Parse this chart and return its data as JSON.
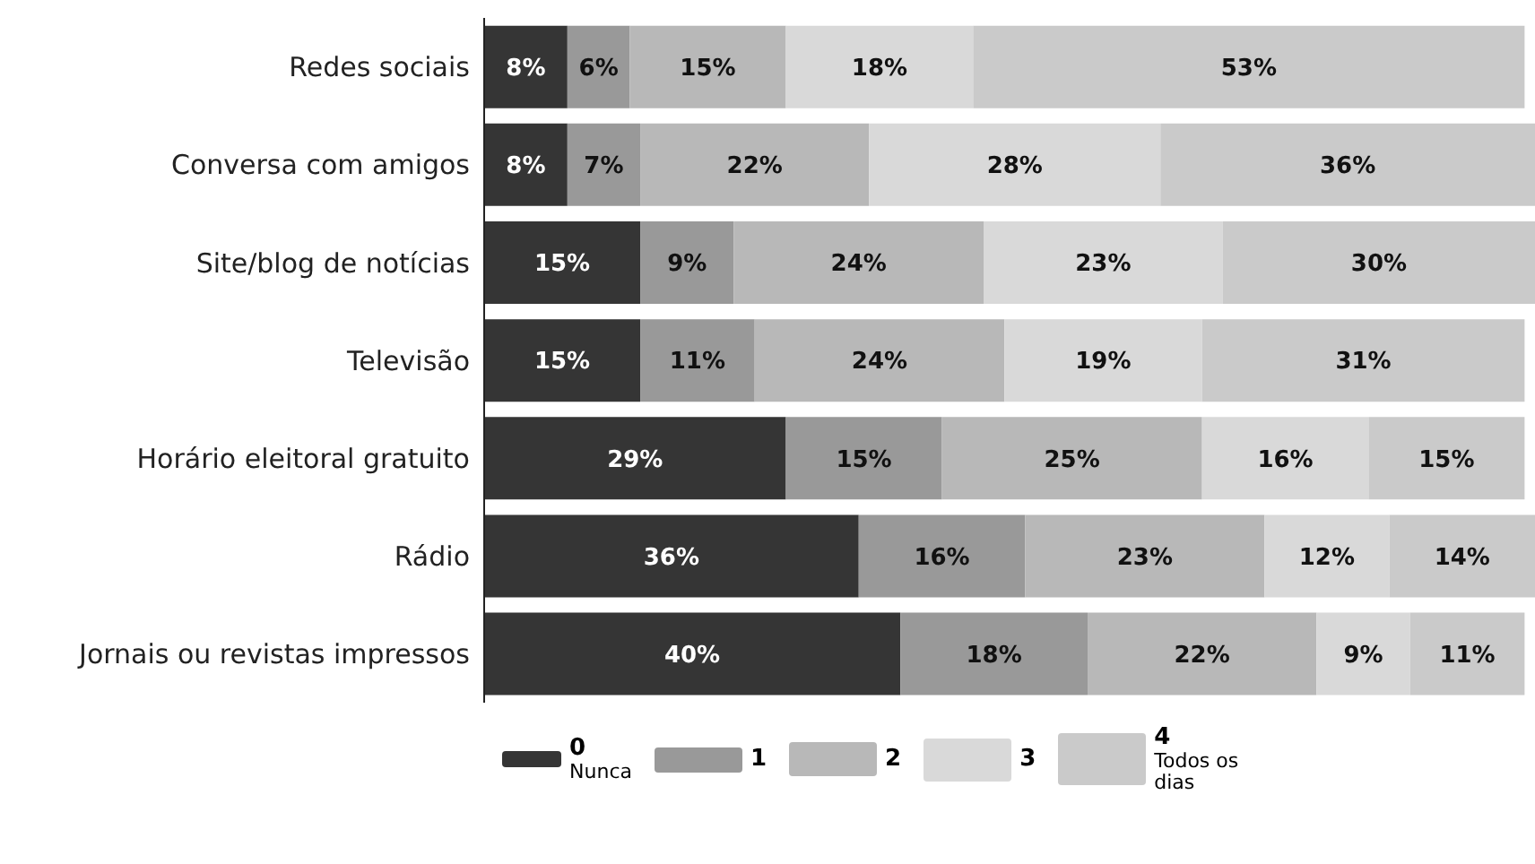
{
  "chart_data": {
    "type": "bar",
    "orientation": "horizontal",
    "stacked": true,
    "legend": "bottom",
    "categories": [
      "Redes sociais",
      "Conversa com amigos",
      "Site/blog de notícias",
      "Televisão",
      "Horário eleitoral gratuito",
      "Rádio",
      "Jornais ou revistas impressos"
    ],
    "series": [
      {
        "name": "0 Nunca",
        "color": "#353535",
        "values": [
          8,
          8,
          15,
          15,
          29,
          36,
          40
        ],
        "value_labels": [
          "8%",
          "8%",
          "15%",
          "15%",
          "29%",
          "36%",
          "40%"
        ]
      },
      {
        "name": "1",
        "color": "#999999",
        "values": [
          6,
          7,
          9,
          11,
          15,
          16,
          18
        ],
        "value_labels": [
          "6%",
          "7%",
          "9%",
          "11%",
          "15%",
          "16%",
          "18%"
        ]
      },
      {
        "name": "2",
        "color": "#b8b8b8",
        "values": [
          15,
          22,
          24,
          24,
          25,
          23,
          22
        ],
        "value_labels": [
          "15%",
          "22%",
          "24%",
          "24%",
          "25%",
          "23%",
          "22%"
        ]
      },
      {
        "name": "3",
        "color": "#d9d9d9",
        "values": [
          18,
          28,
          23,
          19,
          16,
          12,
          9
        ],
        "value_labels": [
          "18%",
          "28%",
          "23%",
          "19%",
          "16%",
          "12%",
          "9%"
        ]
      },
      {
        "name": "4 Todos os dias",
        "color": "#cacaca",
        "values": [
          53,
          36,
          30,
          31,
          15,
          14,
          11
        ],
        "value_labels": [
          "53%",
          "36%",
          "30%",
          "31%",
          "15%",
          "14%",
          "11%"
        ]
      }
    ]
  }
}
